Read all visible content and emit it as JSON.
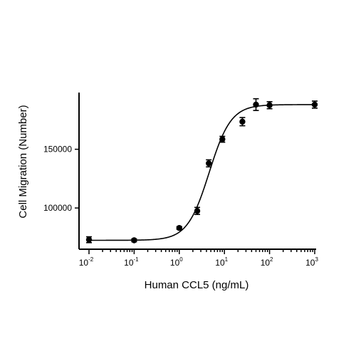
{
  "chart_data": {
    "type": "scatter",
    "xlabel": "Human CCL5 (ng/mL)",
    "ylabel": "Cell Migration (Number)",
    "xscale": "log",
    "xlim": [
      0.01,
      1000
    ],
    "ylim": [
      68000,
      193000
    ],
    "x_ticks": [
      0.01,
      0.1,
      1,
      10,
      100,
      1000
    ],
    "x_tick_labels": [
      {
        "base": "10",
        "exp": "-2"
      },
      {
        "base": "10",
        "exp": "-1"
      },
      {
        "base": "10",
        "exp": "0"
      },
      {
        "base": "10",
        "exp": "1"
      },
      {
        "base": "10",
        "exp": "2"
      },
      {
        "base": "10",
        "exp": "3"
      }
    ],
    "y_ticks": [
      100000,
      150000
    ],
    "y_tick_labels": [
      "100000",
      "150000"
    ],
    "grid": false,
    "points": [
      {
        "x": 0.01,
        "y": 73000,
        "err": 2500
      },
      {
        "x": 0.1,
        "y": 72500,
        "err": 1200
      },
      {
        "x": 1,
        "y": 83000,
        "err": 1200
      },
      {
        "x": 2.5,
        "y": 97500,
        "err": 3000
      },
      {
        "x": 4.5,
        "y": 138000,
        "err": 3000
      },
      {
        "x": 9,
        "y": 158500,
        "err": 2500
      },
      {
        "x": 25,
        "y": 173500,
        "err": 3500
      },
      {
        "x": 50,
        "y": 188000,
        "err": 5000
      },
      {
        "x": 100,
        "y": 187500,
        "err": 3000
      },
      {
        "x": 1000,
        "y": 188000,
        "err": 3000
      }
    ],
    "fit": {
      "model": "4PL",
      "bottom": 72500,
      "top": 188000,
      "ec50": 4.6,
      "hill": 1.8
    }
  }
}
